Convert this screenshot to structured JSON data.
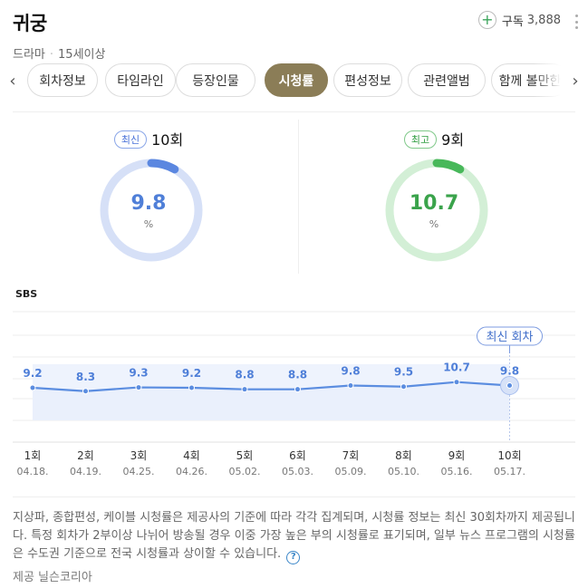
{
  "header": {
    "title": "귀궁",
    "genre": "드라마",
    "rating": "15세이상",
    "subscribe_label": "구독",
    "subscribe_count": "3,888"
  },
  "tabs": [
    {
      "label": "회차정보",
      "active": false
    },
    {
      "label": "타임라인",
      "active": false
    },
    {
      "label": "등장인물",
      "active": false
    },
    {
      "label": "시청률",
      "active": true
    },
    {
      "label": "편성정보",
      "active": false
    },
    {
      "label": "관련앨범",
      "active": false
    },
    {
      "label": "함께 볼만한",
      "active": false
    }
  ],
  "stats": {
    "latest": {
      "badge": "최신",
      "episode": "10회",
      "value": "9.8",
      "unit": "%",
      "color": "#5b87e0"
    },
    "best": {
      "badge": "최고",
      "episode": "9회",
      "value": "10.7",
      "unit": "%",
      "color": "#48b85a"
    }
  },
  "chart_data": {
    "type": "line",
    "network": "SBS",
    "callout": "최신 회차",
    "categories": [
      "1회",
      "2회",
      "3회",
      "4회",
      "5회",
      "6회",
      "7회",
      "8회",
      "9회",
      "10회"
    ],
    "dates": [
      "04.18.",
      "04.19.",
      "04.25.",
      "04.26.",
      "05.02.",
      "05.03.",
      "05.09.",
      "05.10.",
      "05.16.",
      "05.17."
    ],
    "values": [
      9.2,
      8.3,
      9.3,
      9.2,
      8.8,
      8.8,
      9.8,
      9.5,
      10.7,
      9.8
    ],
    "line_color": "#5b8de0",
    "label_color": "#4f7fd8"
  },
  "footnote": {
    "text": "지상파, 종합편성, 케이블 시청률은 제공사의 기준에 따라 각각 집계되며, 시청률 정보는 최신 30회차까지 제공됩니다. 특정 회차가 2부이상 나뉘어 방송될 경우 이중 가장 높은 부의 시청률로 표기되며, 일부 뉴스 프로그램의 시청률은 수도권 기준으로 전국 시청률과 상이할 수 있습니다.",
    "help_icon": "question-circle-icon",
    "provider": "제공 닐슨코리아"
  }
}
